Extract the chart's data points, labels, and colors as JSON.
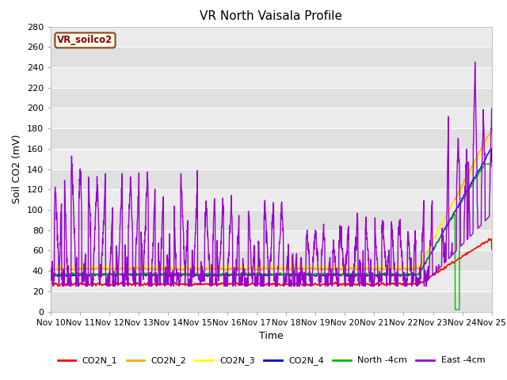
{
  "title": "VR North Vaisala Profile",
  "xlabel": "Time",
  "ylabel": "Soil CO2 (mV)",
  "ylim": [
    0,
    280
  ],
  "xlim": [
    0,
    15
  ],
  "xtick_labels": [
    "Nov 10",
    "Nov 11",
    "Nov 12",
    "Nov 13",
    "Nov 14",
    "Nov 15",
    "Nov 16",
    "Nov 17",
    "Nov 18",
    "Nov 19",
    "Nov 20",
    "Nov 21",
    "Nov 22",
    "Nov 23",
    "Nov 24",
    "Nov 25"
  ],
  "series_colors": {
    "CO2N_1": "#ff0000",
    "CO2N_2": "#ffa500",
    "CO2N_3": "#ffff00",
    "CO2N_4": "#0000cd",
    "North_4cm": "#00bb00",
    "East_4cm": "#9900cc"
  },
  "watermark_text": "VR_soilco2",
  "plot_bg_color": "#e8e8e8",
  "band_color_light": "#ebebeb",
  "band_color_dark": "#d8d8d8"
}
